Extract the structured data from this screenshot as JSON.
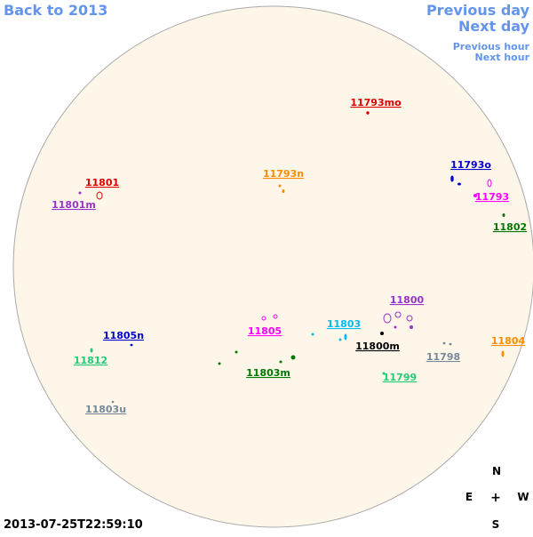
{
  "nav": {
    "back": "Back to 2013",
    "previous_day": "Previous day",
    "next_day": "Next day",
    "previous_hour": "Previous hour",
    "next_hour": "Next hour"
  },
  "regions": [
    {
      "label": "11793mo",
      "color": "#dd0000"
    },
    {
      "label": "11801",
      "color": "#dd0000"
    },
    {
      "label": "11801m",
      "color": "#9933cc"
    },
    {
      "label": "11793n",
      "color": "#ff8c00"
    },
    {
      "label": "11793o",
      "color": "#0000cc"
    },
    {
      "label": "11793",
      "color": "#ff00ff"
    },
    {
      "label": "11802",
      "color": "#007700"
    },
    {
      "label": "11800",
      "color": "#9933cc"
    },
    {
      "label": "11803",
      "color": "#00bbee"
    },
    {
      "label": "11805",
      "color": "#ff00ff"
    },
    {
      "label": "11805n",
      "color": "#0000cc"
    },
    {
      "label": "11800m",
      "color": "#000000"
    },
    {
      "label": "11804",
      "color": "#ff8c00"
    },
    {
      "label": "11798",
      "color": "#778899"
    },
    {
      "label": "11812",
      "color": "#22cc77"
    },
    {
      "label": "11803m",
      "color": "#007700"
    },
    {
      "label": "11799",
      "color": "#22cc77"
    },
    {
      "label": "11803u",
      "color": "#778899"
    }
  ],
  "timestamp": "2013-07-25T22:59:10",
  "compass": {
    "n": "N",
    "e": "E",
    "center": "+",
    "w": "W",
    "s": "S"
  }
}
